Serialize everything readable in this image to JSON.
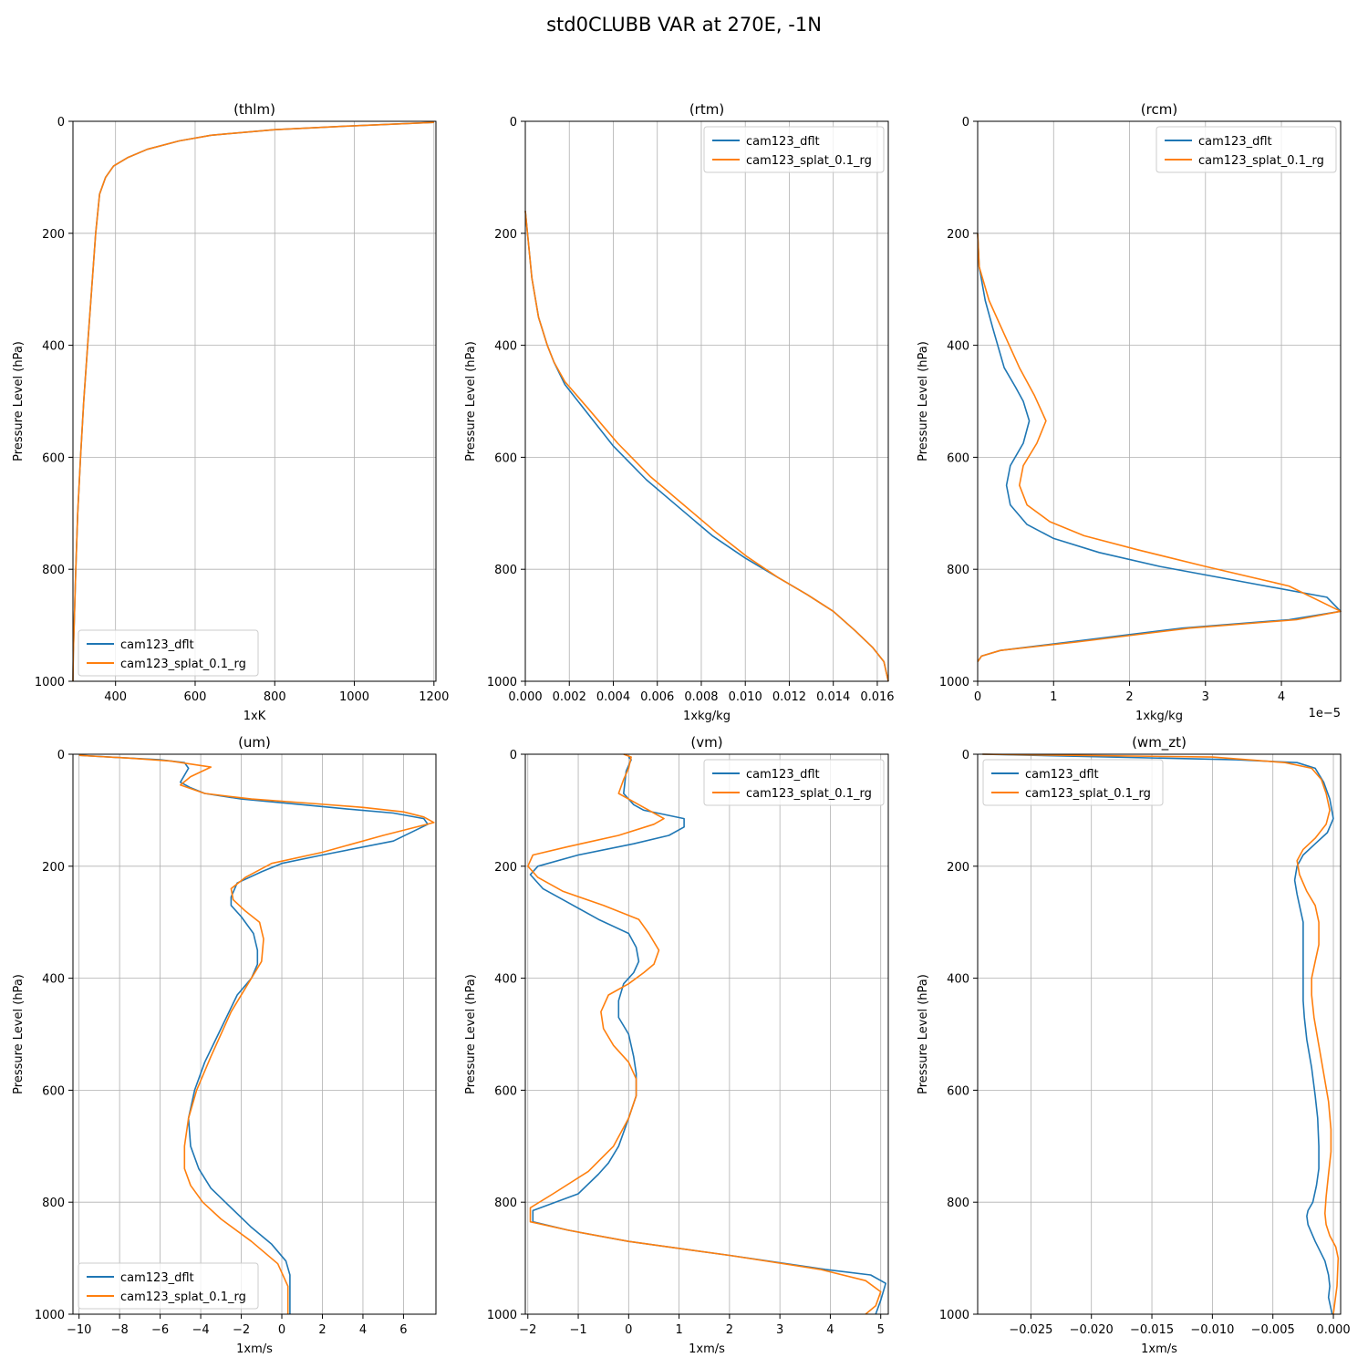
{
  "suptitle": "std0CLUBB VAR at 270E, -1N",
  "colors": {
    "cam123_dflt": "#1f77b4",
    "cam123_splat_0.1_rg": "#ff7f0e",
    "grid": "#b0b0b0"
  },
  "chart_data": [
    {
      "type": "line",
      "title": "(thlm)",
      "xlabel": "1xK",
      "ylabel": "Pressure Level (hPa)",
      "xlim": [
        293,
        1205
      ],
      "ylim": [
        1000,
        0
      ],
      "xticks": [
        400,
        600,
        800,
        1000,
        1200
      ],
      "xtick_labels": [
        "400",
        "600",
        "800",
        "1000",
        "1200"
      ],
      "yticks": [
        0,
        200,
        400,
        600,
        800,
        1000
      ],
      "grid": true,
      "legend": "lower left",
      "series": [
        {
          "name": "cam123_dflt",
          "x": [
            1200,
            1000,
            800,
            640,
            560,
            480,
            430,
            395,
            375,
            360,
            350,
            340,
            330,
            320,
            312,
            305,
            300,
            296,
            294,
            293
          ],
          "y": [
            2,
            8,
            15,
            25,
            35,
            50,
            65,
            80,
            100,
            130,
            200,
            300,
            400,
            500,
            600,
            700,
            800,
            900,
            950,
            1000
          ]
        },
        {
          "name": "cam123_splat_0.1_rg",
          "x": [
            1200,
            1000,
            800,
            640,
            560,
            480,
            430,
            395,
            375,
            360,
            350,
            340,
            330,
            320,
            312,
            305,
            300,
            296,
            294,
            293
          ],
          "y": [
            2,
            8,
            15,
            25,
            35,
            50,
            65,
            80,
            100,
            130,
            200,
            300,
            400,
            500,
            600,
            700,
            800,
            900,
            950,
            1000
          ]
        }
      ]
    },
    {
      "type": "line",
      "title": "(rtm)",
      "xlabel": "1xkg/kg",
      "ylabel": "Pressure Level (hPa)",
      "xlim": [
        0,
        0.0165
      ],
      "ylim": [
        1000,
        0
      ],
      "xticks": [
        0,
        0.002,
        0.004,
        0.006,
        0.008,
        0.01,
        0.012,
        0.014,
        0.016
      ],
      "xtick_labels": [
        "0.000",
        "0.002",
        "0.004",
        "0.006",
        "0.008",
        "0.010",
        "0.012",
        "0.014",
        "0.016"
      ],
      "yticks": [
        0,
        200,
        400,
        600,
        800,
        1000
      ],
      "grid": true,
      "legend": "upper right",
      "series": [
        {
          "name": "cam123_dflt",
          "x": [
            0,
            0.0001,
            0.0003,
            0.0006,
            0.001,
            0.0013,
            0.0018,
            0.0028,
            0.004,
            0.0055,
            0.007,
            0.0085,
            0.01,
            0.0115,
            0.0128,
            0.014,
            0.015,
            0.0158,
            0.0163,
            0.0165
          ],
          "y": [
            160,
            200,
            280,
            350,
            400,
            430,
            470,
            520,
            580,
            640,
            690,
            740,
            780,
            815,
            845,
            875,
            910,
            940,
            965,
            1000
          ]
        },
        {
          "name": "cam123_splat_0.1_rg",
          "x": [
            0,
            0.0001,
            0.0003,
            0.0006,
            0.001,
            0.0013,
            0.0018,
            0.0029,
            0.0042,
            0.0057,
            0.0072,
            0.0087,
            0.0101,
            0.0115,
            0.0128,
            0.014,
            0.015,
            0.0158,
            0.0163,
            0.0165
          ],
          "y": [
            160,
            200,
            280,
            350,
            400,
            430,
            465,
            515,
            575,
            635,
            685,
            735,
            778,
            815,
            845,
            875,
            910,
            940,
            965,
            1000
          ]
        }
      ]
    },
    {
      "type": "line",
      "title": "(rcm)",
      "xlabel": "1xkg/kg",
      "ylabel": "Pressure Level (hPa)",
      "offset_text": "1e−5",
      "xlim": [
        0,
        4.78
      ],
      "ylim": [
        1000,
        0
      ],
      "xticks": [
        0,
        1,
        2,
        3,
        4
      ],
      "xtick_labels": [
        "0",
        "1",
        "2",
        "3",
        "4"
      ],
      "yticks": [
        0,
        200,
        400,
        600,
        800,
        1000
      ],
      "grid": true,
      "legend": "upper right",
      "series": [
        {
          "name": "cam123_dflt",
          "x": [
            0,
            0.02,
            0.1,
            0.2,
            0.35,
            0.5,
            0.6,
            0.68,
            0.6,
            0.43,
            0.38,
            0.43,
            0.65,
            1.0,
            1.6,
            2.4,
            3.4,
            4.6,
            4.78,
            4.1,
            2.7,
            1.2,
            0.3,
            0.05,
            0
          ],
          "y": [
            200,
            260,
            320,
            370,
            440,
            475,
            500,
            535,
            575,
            615,
            650,
            685,
            720,
            745,
            770,
            795,
            820,
            850,
            875,
            890,
            905,
            930,
            945,
            955,
            965
          ]
        },
        {
          "name": "cam123_splat_0.1_rg",
          "x": [
            0,
            0.02,
            0.15,
            0.35,
            0.55,
            0.75,
            0.9,
            0.78,
            0.6,
            0.55,
            0.65,
            0.95,
            1.4,
            2.1,
            3.0,
            4.1,
            4.78,
            4.2,
            2.8,
            1.3,
            0.3,
            0.05,
            0
          ],
          "y": [
            200,
            260,
            320,
            380,
            440,
            490,
            535,
            575,
            615,
            650,
            685,
            715,
            740,
            765,
            795,
            830,
            875,
            890,
            905,
            930,
            945,
            955,
            965
          ]
        }
      ]
    },
    {
      "type": "line",
      "title": "(um)",
      "xlabel": "1xm/s",
      "ylabel": "Pressure Level (hPa)",
      "xlim": [
        -10.3,
        7.6
      ],
      "ylim": [
        1000,
        0
      ],
      "xticks": [
        -10,
        -8,
        -6,
        -4,
        -2,
        0,
        2,
        4,
        6
      ],
      "xtick_labels": [
        "−10",
        "−8",
        "−6",
        "−4",
        "−2",
        "0",
        "2",
        "4",
        "6"
      ],
      "yticks": [
        0,
        200,
        400,
        600,
        800,
        1000
      ],
      "grid": true,
      "legend": "lower left",
      "series": [
        {
          "name": "cam123_dflt",
          "x": [
            -10.0,
            -8.5,
            -6.0,
            -4.8,
            -4.6,
            -5.0,
            -4.5,
            -3.8,
            -2.0,
            1.0,
            3.0,
            5.5,
            7.0,
            7.2,
            5.5,
            2.0,
            0,
            -1.0,
            -2.2,
            -2.5,
            -2.5,
            -2.0,
            -1.4,
            -1.2,
            -1.2,
            -1.5,
            -2.2,
            -3.0,
            -3.8,
            -4.3,
            -4.6,
            -4.5,
            -4.1,
            -3.5,
            -2.5,
            -1.5,
            -0.5,
            0.2,
            0.4,
            0.4,
            0.4
          ],
          "y": [
            2,
            5,
            10,
            15,
            25,
            50,
            60,
            70,
            80,
            90,
            97,
            105,
            115,
            125,
            155,
            180,
            195,
            210,
            230,
            255,
            270,
            290,
            320,
            350,
            375,
            400,
            430,
            490,
            550,
            600,
            650,
            700,
            740,
            775,
            810,
            845,
            875,
            905,
            930,
            955,
            1000
          ]
        },
        {
          "name": "cam123_splat_0.1_rg",
          "x": [
            -10.0,
            -9.0,
            -7.5,
            -5.5,
            -3.5,
            -4.5,
            -5.0,
            -3.8,
            -1.5,
            1.5,
            4.0,
            6.0,
            7.0,
            7.5,
            5.0,
            2.0,
            -0.5,
            -1.8,
            -2.5,
            -2.4,
            -1.8,
            -1.1,
            -0.9,
            -1.0,
            -1.5,
            -2.5,
            -3.5,
            -4.2,
            -4.6,
            -4.8,
            -4.8,
            -4.5,
            -3.9,
            -3.0,
            -1.5,
            -0.2,
            0.3,
            0.3
          ],
          "y": [
            2,
            4,
            7,
            12,
            23,
            40,
            55,
            70,
            80,
            88,
            95,
            103,
            112,
            122,
            145,
            175,
            195,
            220,
            240,
            260,
            280,
            300,
            330,
            370,
            400,
            460,
            540,
            600,
            650,
            700,
            740,
            770,
            800,
            830,
            870,
            910,
            950,
            1000
          ]
        }
      ]
    },
    {
      "type": "line",
      "title": "(vm)",
      "xlabel": "1xm/s",
      "ylabel": "Pressure Level (hPa)",
      "xlim": [
        -2.05,
        5.15
      ],
      "ylim": [
        1000,
        0
      ],
      "xticks": [
        -2,
        -1,
        0,
        1,
        2,
        3,
        4,
        5
      ],
      "xtick_labels": [
        "−2",
        "−1",
        "0",
        "1",
        "2",
        "3",
        "4",
        "5"
      ],
      "yticks": [
        0,
        200,
        400,
        600,
        800,
        1000
      ],
      "grid": true,
      "legend": "upper right",
      "series": [
        {
          "name": "cam123_dflt",
          "x": [
            0,
            0.05,
            0.0,
            -0.05,
            -0.1,
            0.1,
            0.3,
            1.1,
            1.1,
            0.8,
            0.1,
            -1.0,
            -1.8,
            -1.95,
            -1.7,
            -1.2,
            -0.6,
            0,
            0.15,
            0.2,
            0.1,
            -0.1,
            -0.2,
            -0.2,
            0,
            0.1,
            0.15,
            0.15,
            0,
            -0.2,
            -0.4,
            -0.6,
            -1.0,
            -1.9,
            -1.9,
            -1.2,
            0,
            2.0,
            3.9,
            4.8,
            5.1,
            5.0,
            4.9
          ],
          "y": [
            5,
            10,
            20,
            30,
            70,
            90,
            100,
            115,
            130,
            145,
            160,
            180,
            200,
            215,
            240,
            265,
            295,
            320,
            345,
            370,
            390,
            410,
            440,
            470,
            500,
            540,
            570,
            610,
            650,
            700,
            730,
            750,
            785,
            815,
            835,
            850,
            870,
            895,
            920,
            930,
            945,
            975,
            1000
          ]
        },
        {
          "name": "cam123_splat_0.1_rg",
          "x": [
            -0.1,
            0.05,
            0.0,
            -0.1,
            -0.2,
            0.2,
            0.5,
            0.7,
            0.5,
            -0.2,
            -1.2,
            -1.9,
            -2.0,
            -1.8,
            -1.3,
            -0.5,
            0.2,
            0.4,
            0.6,
            0.5,
            0.3,
            0,
            -0.4,
            -0.55,
            -0.5,
            -0.3,
            0,
            0.15,
            0.15,
            0,
            -0.3,
            -0.8,
            -1.5,
            -1.95,
            -1.95,
            -1.2,
            0,
            2.0,
            3.8,
            4.7,
            5.0,
            4.9,
            4.7
          ],
          "y": [
            0,
            5,
            25,
            45,
            70,
            90,
            105,
            115,
            125,
            145,
            165,
            180,
            200,
            220,
            245,
            270,
            295,
            320,
            350,
            375,
            390,
            410,
            430,
            460,
            490,
            520,
            550,
            580,
            610,
            650,
            700,
            745,
            785,
            810,
            835,
            850,
            870,
            895,
            920,
            940,
            960,
            985,
            1000
          ]
        }
      ]
    },
    {
      "type": "line",
      "title": "(wm_zt)",
      "xlabel": "1xm/s",
      "ylabel": "Pressure Level (hPa)",
      "xlim": [
        -0.0294,
        0.0006
      ],
      "ylim": [
        1000,
        0
      ],
      "xticks": [
        -0.025,
        -0.02,
        -0.015,
        -0.01,
        -0.005,
        0.0
      ],
      "xtick_labels": [
        "−0.025",
        "−0.020",
        "−0.015",
        "−0.010",
        "−0.005",
        "0.000"
      ],
      "yticks": [
        0,
        200,
        400,
        600,
        800,
        1000
      ],
      "grid": true,
      "legend": "upper left",
      "series": [
        {
          "name": "cam123_dflt",
          "x": [
            -0.029,
            -0.008,
            -0.003,
            -0.0015,
            -0.0008,
            -0.0003,
            0.0,
            -0.0005,
            -0.0015,
            -0.0025,
            -0.003,
            -0.0032,
            -0.003,
            -0.0027,
            -0.0025,
            -0.0025,
            -0.0025,
            -0.0025,
            -0.0024,
            -0.0022,
            -0.0018,
            -0.0015,
            -0.0013,
            -0.0012,
            -0.0012,
            -0.0014,
            -0.0017,
            -0.0021,
            -0.0022,
            -0.0021,
            -0.0015,
            -0.0007,
            -0.0004,
            -0.0003,
            -0.0004,
            -0.0001
          ],
          "y": [
            0,
            10,
            15,
            25,
            50,
            80,
            115,
            140,
            160,
            180,
            200,
            225,
            250,
            280,
            300,
            350,
            400,
            440,
            470,
            510,
            560,
            610,
            650,
            700,
            740,
            770,
            800,
            815,
            825,
            840,
            870,
            905,
            930,
            950,
            970,
            1000
          ]
        },
        {
          "name": "cam123_splat_0.1_rg",
          "x": [
            -0.029,
            -0.01,
            -0.004,
            -0.0018,
            -0.001,
            -0.0006,
            -0.0003,
            -0.0006,
            -0.0015,
            -0.0025,
            -0.003,
            -0.0028,
            -0.0022,
            -0.0015,
            -0.0012,
            -0.0012,
            -0.0015,
            -0.0018,
            -0.0018,
            -0.0016,
            -0.0012,
            -0.0008,
            -0.0004,
            -0.0002,
            -0.0002,
            -0.0004,
            -0.0006,
            -0.0007,
            -0.0006,
            -0.0003,
            0.0002,
            0.0004,
            0.0003,
            0.0
          ],
          "y": [
            0,
            5,
            15,
            25,
            45,
            70,
            100,
            125,
            150,
            170,
            190,
            215,
            245,
            270,
            300,
            340,
            370,
            400,
            430,
            470,
            520,
            570,
            620,
            670,
            710,
            750,
            790,
            820,
            840,
            860,
            880,
            900,
            950,
            1000
          ]
        }
      ]
    }
  ]
}
